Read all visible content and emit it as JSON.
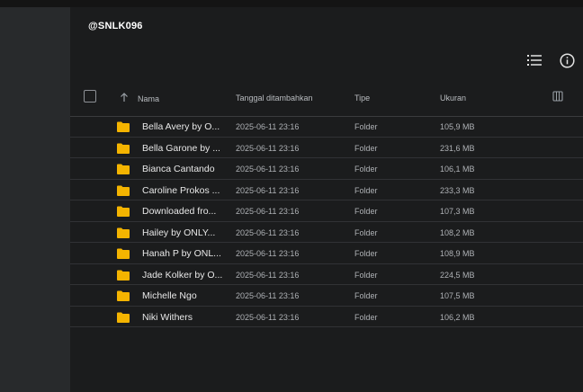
{
  "header": {
    "title": "@SNLK096"
  },
  "columns": {
    "name": "Nama",
    "date": "Tanggal ditambahkan",
    "type": "Tipe",
    "size": "Ukuran"
  },
  "icons": {
    "list_view": "list-view-icon",
    "info": "info-icon",
    "folder": "folder-icon",
    "sort": "arrow-up-icon",
    "columns": "column-settings-icon"
  },
  "colors": {
    "folder": "#f4b400",
    "background": "#1b1c1d",
    "sidebar": "#282a2c"
  },
  "files": [
    {
      "name": "Bella Avery by O...",
      "date": "2025-06-11 23:16",
      "type": "Folder",
      "size": "105,9 MB"
    },
    {
      "name": "Bella Garone by ...",
      "date": "2025-06-11 23:16",
      "type": "Folder",
      "size": "231,6 MB"
    },
    {
      "name": "Bianca Cantando",
      "date": "2025-06-11 23:16",
      "type": "Folder",
      "size": "106,1 MB"
    },
    {
      "name": "Caroline Prokos ...",
      "date": "2025-06-11 23:16",
      "type": "Folder",
      "size": "233,3 MB"
    },
    {
      "name": "Downloaded fro...",
      "date": "2025-06-11 23:16",
      "type": "Folder",
      "size": "107,3 MB"
    },
    {
      "name": "Hailey by ONLY...",
      "date": "2025-06-11 23:16",
      "type": "Folder",
      "size": "108,2 MB"
    },
    {
      "name": "Hanah P by ONL...",
      "date": "2025-06-11 23:16",
      "type": "Folder",
      "size": "108,9 MB"
    },
    {
      "name": "Jade Kolker by O...",
      "date": "2025-06-11 23:16",
      "type": "Folder",
      "size": "224,5 MB"
    },
    {
      "name": "Michelle Ngo",
      "date": "2025-06-11 23:16",
      "type": "Folder",
      "size": "107,5 MB"
    },
    {
      "name": "Niki Withers",
      "date": "2025-06-11 23:16",
      "type": "Folder",
      "size": "106,2 MB"
    }
  ]
}
